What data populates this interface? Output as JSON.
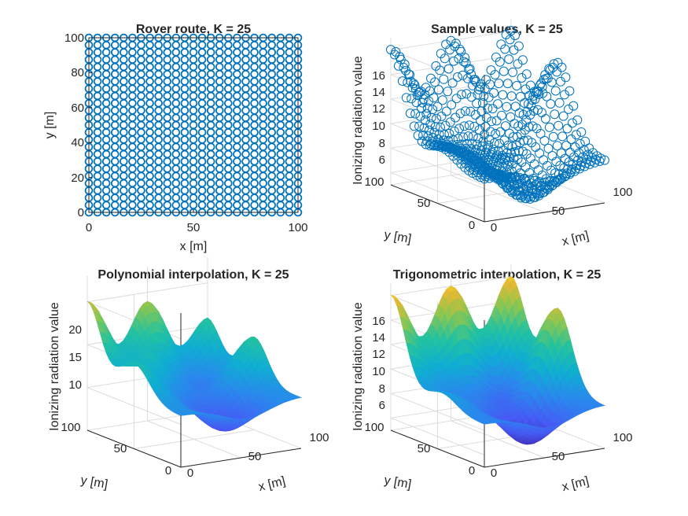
{
  "figure": {
    "background": "#ffffff",
    "text_color": "#262626",
    "marker_color": "#0072BD"
  },
  "chart_data": [
    {
      "type": "scatter",
      "title": "Rover route, K = 25",
      "xlabel": "x [m]",
      "ylabel": "y [m]",
      "xlim": [
        0,
        100
      ],
      "ylim": [
        0,
        100
      ],
      "x_ticks": [
        "0",
        "50",
        "100"
      ],
      "y_ticks": [
        "0",
        "20",
        "40",
        "60",
        "80",
        "100"
      ],
      "grid_points_per_axis": 25,
      "marker": "open circle",
      "color": "#0072BD"
    },
    {
      "type": "scatter3d",
      "title": "Sample values, K = 25",
      "xlabel": "x [m]",
      "ylabel": "y [m]",
      "zlabel": "Ionizing radiation value",
      "xlim": [
        0,
        100
      ],
      "ylim": [
        0,
        100
      ],
      "zlim": [
        5,
        17
      ],
      "x_ticks": [
        "0",
        "50",
        "100"
      ],
      "y_ticks": [
        "0",
        "50",
        "100"
      ],
      "z_ticks": [
        "6",
        "8",
        "10",
        "12",
        "14",
        "16"
      ],
      "marker": "open circle",
      "color": "#0072BD",
      "grid_points_per_axis": 25
    },
    {
      "type": "surface",
      "title": "Polynomial interpolation, K = 25",
      "xlabel": "x [m]",
      "ylabel": "y [m]",
      "zlabel": "Ionizing radiation value",
      "xlim": [
        0,
        100
      ],
      "ylim": [
        0,
        100
      ],
      "zlim": [
        5,
        23
      ],
      "x_ticks": [
        "0",
        "50",
        "100"
      ],
      "y_ticks": [
        "0",
        "50",
        "100"
      ],
      "z_ticks": [
        "10",
        "15",
        "20"
      ],
      "colormap": "parula"
    },
    {
      "type": "surface",
      "title": "Trigonometric interpolation, K = 25",
      "xlabel": "x [m]",
      "ylabel": "y [m]",
      "zlabel": "Ionizing radiation value",
      "xlim": [
        0,
        100
      ],
      "ylim": [
        0,
        100
      ],
      "zlim": [
        5,
        17
      ],
      "x_ticks": [
        "0",
        "50",
        "100"
      ],
      "y_ticks": [
        "0",
        "50",
        "100"
      ],
      "z_ticks": [
        "6",
        "8",
        "10",
        "12",
        "14",
        "16"
      ],
      "colormap": "parula"
    }
  ]
}
